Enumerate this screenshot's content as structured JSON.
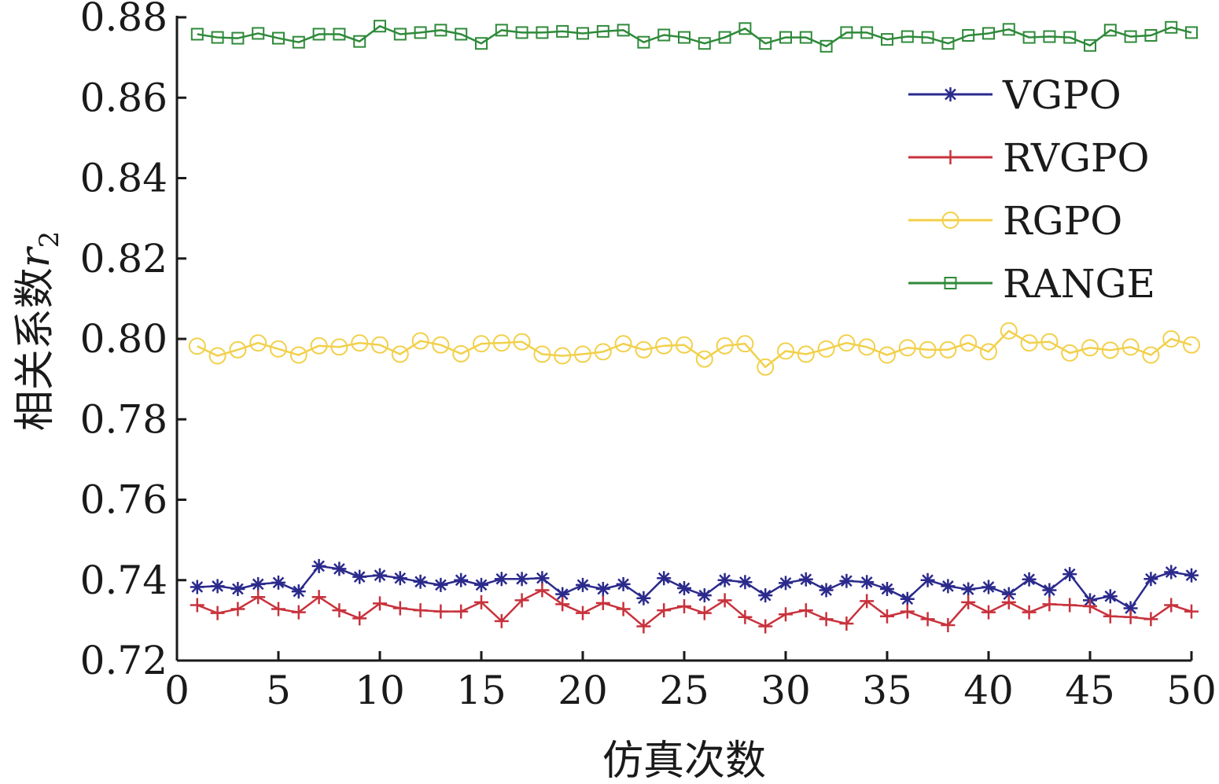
{
  "chart_data": {
    "type": "line",
    "xlabel": "仿真次数",
    "ylabel": "相关系数",
    "ylabel_var": "r",
    "ylabel_sub": "2",
    "xlim": [
      0,
      50
    ],
    "ylim": [
      0.72,
      0.88
    ],
    "x_ticks": [
      "0",
      "5",
      "10",
      "15",
      "20",
      "25",
      "30",
      "35",
      "40",
      "45",
      "50"
    ],
    "y_ticks": [
      "0.72",
      "0.74",
      "0.76",
      "0.78",
      "0.80",
      "0.82",
      "0.84",
      "0.86",
      "0.88"
    ],
    "grid": false,
    "legend_position": "top-right",
    "x": [
      1,
      2,
      3,
      4,
      5,
      6,
      7,
      8,
      9,
      10,
      11,
      12,
      13,
      14,
      15,
      16,
      17,
      18,
      19,
      20,
      21,
      22,
      23,
      24,
      25,
      26,
      27,
      28,
      29,
      30,
      31,
      32,
      33,
      34,
      35,
      36,
      37,
      38,
      39,
      40,
      41,
      42,
      43,
      44,
      45,
      46,
      47,
      48,
      49,
      50
    ],
    "series": [
      {
        "name": "VGPO",
        "color": "#2b2a8c",
        "marker": "star",
        "values": [
          0.7383,
          0.7385,
          0.7378,
          0.739,
          0.7394,
          0.7372,
          0.7435,
          0.7428,
          0.7408,
          0.7412,
          0.7405,
          0.7396,
          0.7388,
          0.74,
          0.7388,
          0.7403,
          0.7403,
          0.7405,
          0.7365,
          0.7388,
          0.7378,
          0.739,
          0.7355,
          0.7405,
          0.738,
          0.7362,
          0.74,
          0.7395,
          0.7362,
          0.7393,
          0.7402,
          0.7375,
          0.7398,
          0.7395,
          0.7378,
          0.7353,
          0.74,
          0.7385,
          0.7377,
          0.7383,
          0.7365,
          0.7402,
          0.7375,
          0.7415,
          0.735,
          0.736,
          0.733,
          0.7403,
          0.742,
          0.7412
        ]
      },
      {
        "name": "RVGPO",
        "color": "#c8323c",
        "marker": "plus",
        "values": [
          0.7338,
          0.7318,
          0.7328,
          0.7358,
          0.7328,
          0.732,
          0.7358,
          0.7325,
          0.7305,
          0.7342,
          0.733,
          0.7325,
          0.7322,
          0.7322,
          0.7345,
          0.7298,
          0.735,
          0.7375,
          0.734,
          0.7318,
          0.7343,
          0.7328,
          0.7285,
          0.7325,
          0.7335,
          0.7318,
          0.735,
          0.7308,
          0.7285,
          0.7315,
          0.7325,
          0.7303,
          0.7292,
          0.7348,
          0.731,
          0.7322,
          0.7303,
          0.7288,
          0.7345,
          0.732,
          0.7345,
          0.732,
          0.734,
          0.7338,
          0.7335,
          0.731,
          0.7308,
          0.7303,
          0.7338,
          0.7322
        ]
      },
      {
        "name": "RGPO",
        "color": "#f2d04a",
        "marker": "circle",
        "values": [
          0.7982,
          0.7958,
          0.7973,
          0.799,
          0.7975,
          0.796,
          0.7983,
          0.798,
          0.799,
          0.7985,
          0.7962,
          0.7995,
          0.7985,
          0.7963,
          0.7988,
          0.799,
          0.7993,
          0.7962,
          0.7958,
          0.7962,
          0.7968,
          0.7988,
          0.7973,
          0.7983,
          0.7985,
          0.795,
          0.7983,
          0.7988,
          0.793,
          0.797,
          0.7962,
          0.7975,
          0.799,
          0.798,
          0.796,
          0.7978,
          0.7973,
          0.7973,
          0.799,
          0.7968,
          0.802,
          0.799,
          0.7993,
          0.7965,
          0.7978,
          0.7972,
          0.798,
          0.796,
          0.8,
          0.7985
        ]
      },
      {
        "name": "RANGE",
        "color": "#2f8a3a",
        "marker": "square",
        "values": [
          0.8758,
          0.875,
          0.8748,
          0.876,
          0.8748,
          0.8738,
          0.8758,
          0.8758,
          0.874,
          0.8778,
          0.8758,
          0.8762,
          0.8768,
          0.8758,
          0.8735,
          0.8768,
          0.8762,
          0.8762,
          0.8765,
          0.876,
          0.8765,
          0.8768,
          0.8738,
          0.8756,
          0.875,
          0.8735,
          0.875,
          0.8772,
          0.8735,
          0.875,
          0.875,
          0.8728,
          0.8762,
          0.8762,
          0.8745,
          0.8752,
          0.875,
          0.8735,
          0.8755,
          0.876,
          0.877,
          0.875,
          0.8752,
          0.875,
          0.873,
          0.8768,
          0.8752,
          0.8755,
          0.8775,
          0.8762
        ]
      }
    ]
  }
}
